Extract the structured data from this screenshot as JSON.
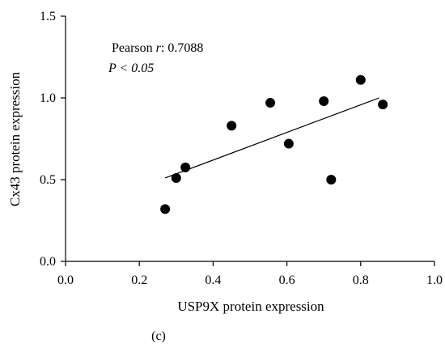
{
  "chart_data": {
    "type": "scatter",
    "xlabel": "USP9X protein expression",
    "ylabel": "Cx43 protein expression",
    "xlim": [
      0.0,
      1.0
    ],
    "ylim": [
      0.0,
      1.5
    ],
    "xticks": [
      "0.0",
      "0.2",
      "0.4",
      "0.6",
      "0.8",
      "1.0"
    ],
    "yticks": [
      "0.0",
      "0.5",
      "1.0",
      "1.5"
    ],
    "points": [
      {
        "x": 0.27,
        "y": 0.32
      },
      {
        "x": 0.3,
        "y": 0.51
      },
      {
        "x": 0.325,
        "y": 0.575
      },
      {
        "x": 0.45,
        "y": 0.83
      },
      {
        "x": 0.555,
        "y": 0.97
      },
      {
        "x": 0.605,
        "y": 0.72
      },
      {
        "x": 0.7,
        "y": 0.98
      },
      {
        "x": 0.72,
        "y": 0.5
      },
      {
        "x": 0.8,
        "y": 1.11
      },
      {
        "x": 0.86,
        "y": 0.96
      }
    ],
    "trendline": {
      "x": [
        0.27,
        0.85
      ],
      "y": [
        0.51,
        1.0
      ]
    },
    "annotation_r": "Pearson r: 0.7088",
    "annotation_p": "P < 0.05",
    "grid": false,
    "legend": "none"
  },
  "panel_label": "(c)"
}
